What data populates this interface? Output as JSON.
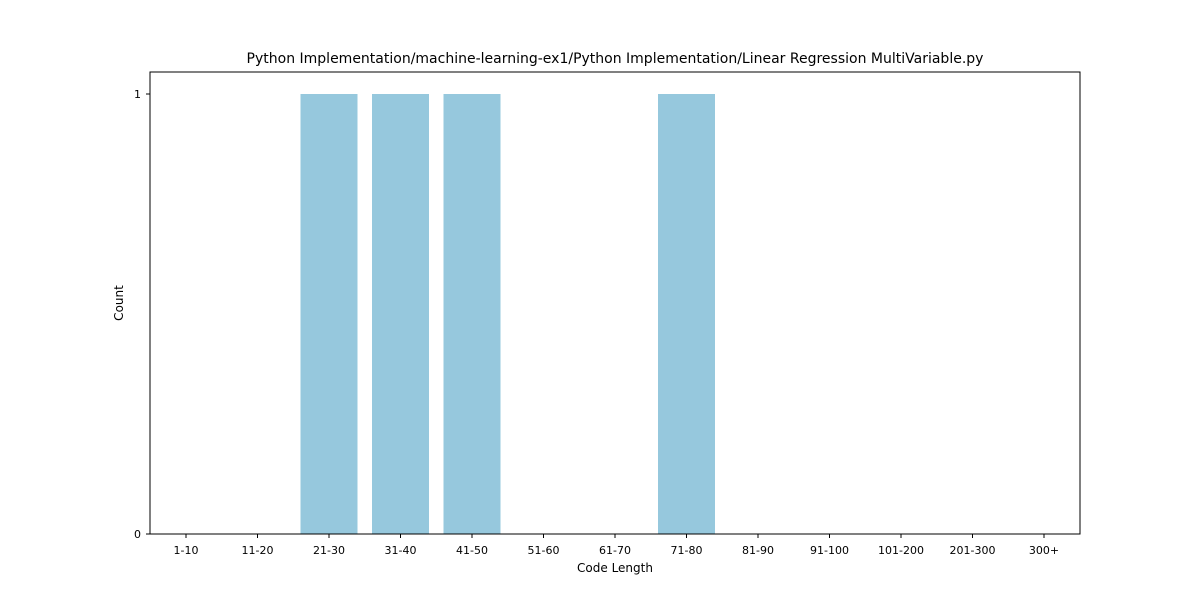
{
  "chart_data": {
    "type": "bar",
    "title": "Python Implementation/machine-learning-ex1/Python Implementation/Linear Regression MultiVariable.py",
    "xlabel": "Code Length",
    "ylabel": "Count",
    "categories": [
      "1-10",
      "11-20",
      "21-30",
      "31-40",
      "41-50",
      "51-60",
      "61-70",
      "71-80",
      "81-90",
      "91-100",
      "101-200",
      "201-300",
      "300+"
    ],
    "values": [
      0,
      0,
      1,
      1,
      1,
      0,
      0,
      1,
      0,
      0,
      0,
      0,
      0
    ],
    "ylim": [
      0,
      1.05
    ],
    "yticks": [
      0,
      1
    ],
    "ytick_labels": [
      "0",
      "1"
    ],
    "bar_color": "#96c8dd",
    "grid": false,
    "legend": null
  }
}
